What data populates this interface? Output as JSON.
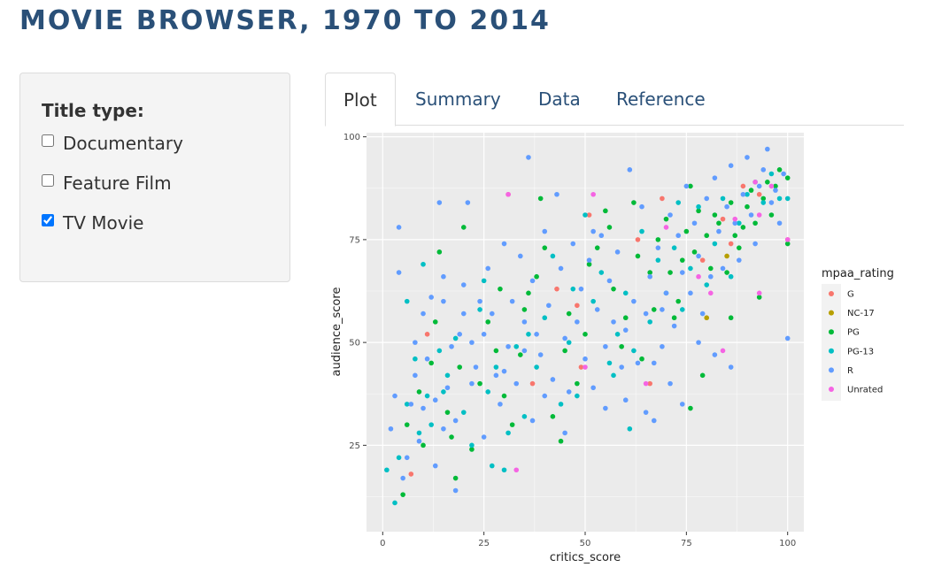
{
  "app": {
    "title": "MOVIE BROWSER, 1970 TO 2014"
  },
  "sidebar": {
    "label": "Title type:",
    "options": [
      {
        "label": "Documentary",
        "checked": false
      },
      {
        "label": "Feature Film",
        "checked": false
      },
      {
        "label": "TV Movie",
        "checked": true
      }
    ]
  },
  "tabs": [
    {
      "label": "Plot",
      "active": true
    },
    {
      "label": "Summary",
      "active": false
    },
    {
      "label": "Data",
      "active": false
    },
    {
      "label": "Reference",
      "active": false
    }
  ],
  "chart_data": {
    "type": "scatter",
    "xlabel": "critics_score",
    "ylabel": "audience_score",
    "xlim": [
      -4,
      104
    ],
    "ylim": [
      4,
      101
    ],
    "xticks": [
      0,
      25,
      50,
      75,
      100
    ],
    "yticks": [
      25,
      50,
      75,
      100
    ],
    "grid": true,
    "legend": {
      "title": "mpaa_rating",
      "position": "right"
    },
    "series": [
      {
        "name": "G",
        "color": "#F8766D",
        "points": [
          [
            7,
            18
          ],
          [
            11,
            52
          ],
          [
            31,
            86
          ],
          [
            37,
            40
          ],
          [
            43,
            63
          ],
          [
            48,
            59
          ],
          [
            49,
            44
          ],
          [
            51,
            81
          ],
          [
            63,
            75
          ],
          [
            69,
            85
          ],
          [
            79,
            70
          ],
          [
            84,
            80
          ],
          [
            89,
            88
          ],
          [
            93,
            86
          ],
          [
            100,
            75
          ],
          [
            66,
            40
          ],
          [
            86,
            74
          ]
        ]
      },
      {
        "name": "NC-17",
        "color": "#B79F00",
        "points": [
          [
            80,
            56
          ],
          [
            85,
            71
          ]
        ]
      },
      {
        "name": "PG",
        "color": "#00BA38",
        "points": [
          [
            5,
            13
          ],
          [
            6,
            30
          ],
          [
            9,
            38
          ],
          [
            10,
            25
          ],
          [
            12,
            45
          ],
          [
            13,
            55
          ],
          [
            14,
            72
          ],
          [
            16,
            33
          ],
          [
            17,
            27
          ],
          [
            18,
            17
          ],
          [
            19,
            44
          ],
          [
            20,
            78
          ],
          [
            22,
            24
          ],
          [
            24,
            40
          ],
          [
            26,
            55
          ],
          [
            28,
            48
          ],
          [
            29,
            63
          ],
          [
            30,
            37
          ],
          [
            32,
            30
          ],
          [
            34,
            47
          ],
          [
            35,
            58
          ],
          [
            36,
            62
          ],
          [
            38,
            66
          ],
          [
            39,
            85
          ],
          [
            40,
            73
          ],
          [
            42,
            32
          ],
          [
            44,
            26
          ],
          [
            45,
            48
          ],
          [
            46,
            57
          ],
          [
            48,
            40
          ],
          [
            50,
            52
          ],
          [
            51,
            69
          ],
          [
            53,
            73
          ],
          [
            55,
            82
          ],
          [
            56,
            78
          ],
          [
            57,
            63
          ],
          [
            59,
            49
          ],
          [
            60,
            56
          ],
          [
            62,
            84
          ],
          [
            63,
            71
          ],
          [
            64,
            46
          ],
          [
            66,
            67
          ],
          [
            67,
            58
          ],
          [
            68,
            75
          ],
          [
            70,
            80
          ],
          [
            71,
            67
          ],
          [
            72,
            56
          ],
          [
            73,
            60
          ],
          [
            74,
            70
          ],
          [
            75,
            77
          ],
          [
            76,
            88
          ],
          [
            77,
            72
          ],
          [
            78,
            82
          ],
          [
            79,
            42
          ],
          [
            80,
            76
          ],
          [
            81,
            68
          ],
          [
            82,
            81
          ],
          [
            83,
            79
          ],
          [
            85,
            67
          ],
          [
            86,
            84
          ],
          [
            87,
            76
          ],
          [
            88,
            73
          ],
          [
            89,
            78
          ],
          [
            90,
            83
          ],
          [
            91,
            87
          ],
          [
            92,
            79
          ],
          [
            93,
            61
          ],
          [
            94,
            85
          ],
          [
            95,
            89
          ],
          [
            96,
            81
          ],
          [
            98,
            92
          ],
          [
            100,
            90
          ],
          [
            100,
            74
          ],
          [
            76,
            34
          ],
          [
            86,
            56
          ],
          [
            97,
            88
          ]
        ]
      },
      {
        "name": "PG-13",
        "color": "#00BFC4",
        "points": [
          [
            1,
            19
          ],
          [
            3,
            11
          ],
          [
            4,
            22
          ],
          [
            6,
            35
          ],
          [
            8,
            46
          ],
          [
            9,
            28
          ],
          [
            10,
            69
          ],
          [
            11,
            37
          ],
          [
            12,
            30
          ],
          [
            14,
            48
          ],
          [
            16,
            42
          ],
          [
            18,
            51
          ],
          [
            20,
            33
          ],
          [
            22,
            25
          ],
          [
            24,
            58
          ],
          [
            25,
            65
          ],
          [
            26,
            38
          ],
          [
            28,
            44
          ],
          [
            30,
            19
          ],
          [
            31,
            28
          ],
          [
            33,
            49
          ],
          [
            35,
            32
          ],
          [
            36,
            52
          ],
          [
            38,
            44
          ],
          [
            40,
            56
          ],
          [
            42,
            71
          ],
          [
            44,
            35
          ],
          [
            46,
            50
          ],
          [
            48,
            37
          ],
          [
            50,
            81
          ],
          [
            52,
            60
          ],
          [
            54,
            67
          ],
          [
            56,
            45
          ],
          [
            58,
            52
          ],
          [
            60,
            62
          ],
          [
            61,
            29
          ],
          [
            62,
            48
          ],
          [
            64,
            77
          ],
          [
            66,
            55
          ],
          [
            68,
            70
          ],
          [
            70,
            62
          ],
          [
            72,
            73
          ],
          [
            74,
            58
          ],
          [
            76,
            68
          ],
          [
            78,
            83
          ],
          [
            80,
            64
          ],
          [
            82,
            74
          ],
          [
            84,
            85
          ],
          [
            86,
            66
          ],
          [
            88,
            79
          ],
          [
            90,
            86
          ],
          [
            92,
            89
          ],
          [
            94,
            84
          ],
          [
            96,
            91
          ],
          [
            98,
            85
          ],
          [
            100,
            85
          ],
          [
            6,
            60
          ],
          [
            15,
            38
          ],
          [
            27,
            20
          ],
          [
            47,
            63
          ],
          [
            57,
            42
          ],
          [
            73,
            84
          ]
        ]
      },
      {
        "name": "R",
        "color": "#619CFF",
        "points": [
          [
            2,
            29
          ],
          [
            3,
            37
          ],
          [
            4,
            78
          ],
          [
            4,
            67
          ],
          [
            5,
            17
          ],
          [
            6,
            22
          ],
          [
            7,
            35
          ],
          [
            8,
            50
          ],
          [
            8,
            42
          ],
          [
            9,
            26
          ],
          [
            10,
            57
          ],
          [
            11,
            46
          ],
          [
            12,
            61
          ],
          [
            13,
            36
          ],
          [
            13,
            20
          ],
          [
            14,
            84
          ],
          [
            15,
            29
          ],
          [
            15,
            60
          ],
          [
            16,
            39
          ],
          [
            17,
            49
          ],
          [
            18,
            14
          ],
          [
            18,
            31
          ],
          [
            19,
            52
          ],
          [
            20,
            64
          ],
          [
            21,
            84
          ],
          [
            22,
            40
          ],
          [
            22,
            50
          ],
          [
            23,
            44
          ],
          [
            24,
            60
          ],
          [
            25,
            27
          ],
          [
            26,
            68
          ],
          [
            27,
            57
          ],
          [
            28,
            42
          ],
          [
            29,
            35
          ],
          [
            30,
            74
          ],
          [
            31,
            49
          ],
          [
            32,
            60
          ],
          [
            33,
            40
          ],
          [
            34,
            71
          ],
          [
            35,
            55
          ],
          [
            36,
            95
          ],
          [
            37,
            31
          ],
          [
            37,
            65
          ],
          [
            38,
            52
          ],
          [
            39,
            47
          ],
          [
            40,
            77
          ],
          [
            41,
            59
          ],
          [
            42,
            41
          ],
          [
            43,
            86
          ],
          [
            44,
            68
          ],
          [
            45,
            51
          ],
          [
            46,
            38
          ],
          [
            47,
            74
          ],
          [
            48,
            55
          ],
          [
            49,
            63
          ],
          [
            50,
            46
          ],
          [
            51,
            70
          ],
          [
            52,
            39
          ],
          [
            53,
            58
          ],
          [
            54,
            76
          ],
          [
            55,
            49
          ],
          [
            56,
            65
          ],
          [
            57,
            55
          ],
          [
            58,
            72
          ],
          [
            59,
            44
          ],
          [
            60,
            53
          ],
          [
            61,
            92
          ],
          [
            62,
            60
          ],
          [
            63,
            45
          ],
          [
            64,
            83
          ],
          [
            65,
            57
          ],
          [
            66,
            66
          ],
          [
            67,
            31
          ],
          [
            68,
            73
          ],
          [
            69,
            49
          ],
          [
            70,
            62
          ],
          [
            71,
            81
          ],
          [
            72,
            54
          ],
          [
            73,
            76
          ],
          [
            74,
            67
          ],
          [
            75,
            88
          ],
          [
            76,
            62
          ],
          [
            77,
            79
          ],
          [
            78,
            71
          ],
          [
            79,
            57
          ],
          [
            80,
            85
          ],
          [
            81,
            66
          ],
          [
            82,
            90
          ],
          [
            83,
            77
          ],
          [
            84,
            68
          ],
          [
            85,
            83
          ],
          [
            86,
            93
          ],
          [
            87,
            79
          ],
          [
            88,
            70
          ],
          [
            89,
            86
          ],
          [
            90,
            95
          ],
          [
            91,
            81
          ],
          [
            92,
            74
          ],
          [
            93,
            88
          ],
          [
            94,
            92
          ],
          [
            95,
            97
          ],
          [
            96,
            84
          ],
          [
            97,
            87
          ],
          [
            98,
            79
          ],
          [
            99,
            91
          ],
          [
            100,
            51
          ],
          [
            60,
            36
          ],
          [
            65,
            33
          ],
          [
            67,
            45
          ],
          [
            71,
            40
          ],
          [
            74,
            35
          ],
          [
            78,
            50
          ],
          [
            82,
            47
          ],
          [
            86,
            44
          ],
          [
            40,
            37
          ],
          [
            35,
            48
          ],
          [
            45,
            28
          ],
          [
            30,
            43
          ],
          [
            55,
            34
          ],
          [
            25,
            52
          ],
          [
            20,
            57
          ],
          [
            15,
            66
          ],
          [
            10,
            34
          ],
          [
            52,
            77
          ],
          [
            69,
            58
          ]
        ]
      },
      {
        "name": "Unrated",
        "color": "#F564E3",
        "points": [
          [
            31,
            86
          ],
          [
            33,
            19
          ],
          [
            50,
            44
          ],
          [
            52,
            86
          ],
          [
            65,
            40
          ],
          [
            70,
            78
          ],
          [
            78,
            66
          ],
          [
            81,
            62
          ],
          [
            84,
            48
          ],
          [
            87,
            80
          ],
          [
            92,
            89
          ],
          [
            93,
            81
          ],
          [
            96,
            88
          ],
          [
            100,
            75
          ],
          [
            93,
            62
          ]
        ]
      }
    ]
  }
}
